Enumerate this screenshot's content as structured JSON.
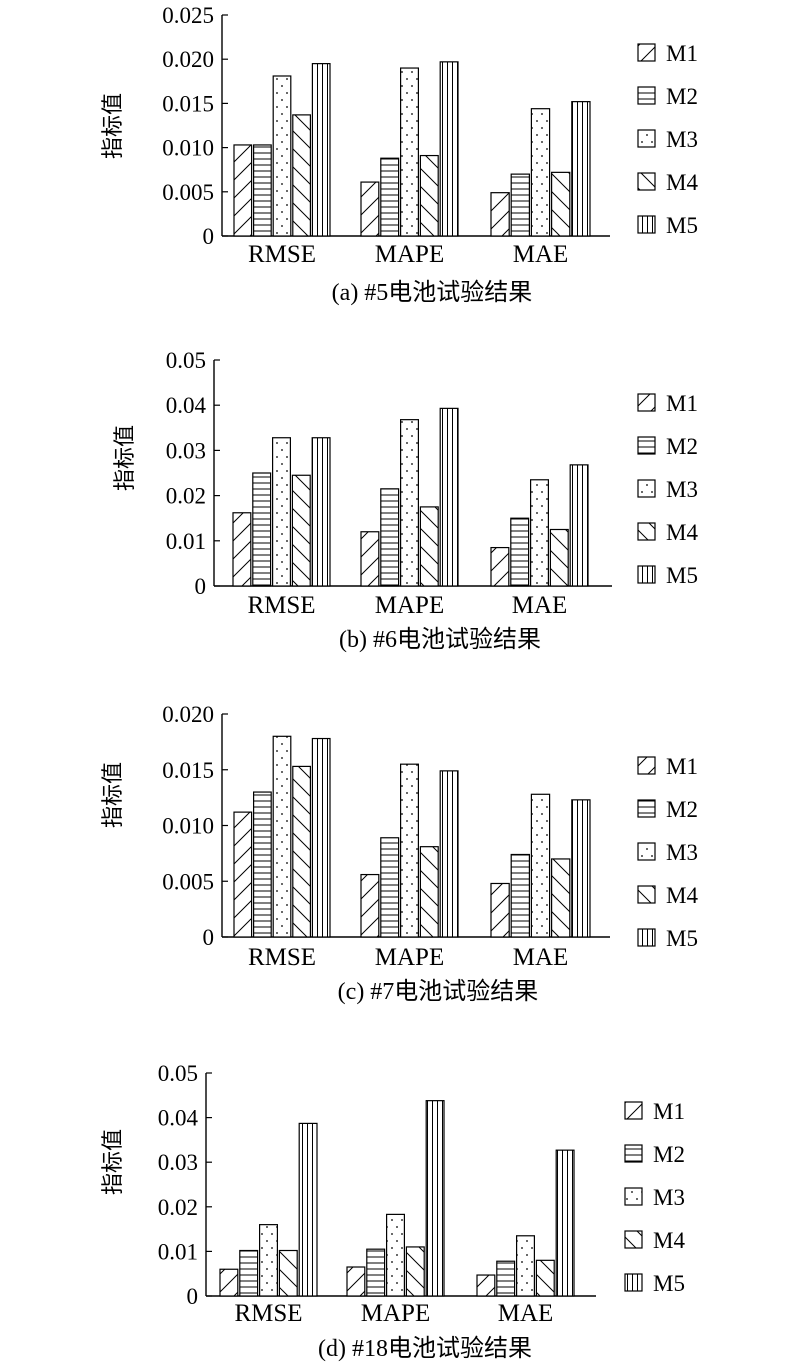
{
  "figure": {
    "patterns": {
      "M1": "diagonal-up",
      "M2": "horizontal",
      "M3": "dotted-diagonal",
      "M4": "diagonal-down",
      "M5": "vertical"
    }
  },
  "chart_data": [
    {
      "type": "bar",
      "caption": "(a) #5电池试验结果",
      "ylabel": "指标值",
      "categories": [
        "RMSE",
        "MAPE",
        "MAE"
      ],
      "ylim": [
        0,
        0.025
      ],
      "yticks": [
        "0",
        "0.005",
        "0.010",
        "0.015",
        "0.020",
        "0.025"
      ],
      "ytick_values": [
        0,
        0.005,
        0.01,
        0.015,
        0.02,
        0.025
      ],
      "legend_position": "right",
      "series": [
        {
          "name": "M1",
          "values": [
            0.0103,
            0.0061,
            0.0049
          ]
        },
        {
          "name": "M2",
          "values": [
            0.0103,
            0.0088,
            0.007
          ]
        },
        {
          "name": "M3",
          "values": [
            0.0181,
            0.019,
            0.0144
          ]
        },
        {
          "name": "M4",
          "values": [
            0.0137,
            0.0091,
            0.0072
          ]
        },
        {
          "name": "M5",
          "values": [
            0.0195,
            0.0197,
            0.0152
          ]
        }
      ]
    },
    {
      "type": "bar",
      "caption": "(b) #6电池试验结果",
      "ylabel": "指标值",
      "categories": [
        "RMSE",
        "MAPE",
        "MAE"
      ],
      "ylim": [
        0,
        0.05
      ],
      "yticks": [
        "0",
        "0.01",
        "0.02",
        "0.03",
        "0.04",
        "0.05"
      ],
      "ytick_values": [
        0,
        0.01,
        0.02,
        0.03,
        0.04,
        0.05
      ],
      "legend_position": "right",
      "series": [
        {
          "name": "M1",
          "values": [
            0.0162,
            0.012,
            0.0085
          ]
        },
        {
          "name": "M2",
          "values": [
            0.025,
            0.0215,
            0.015
          ]
        },
        {
          "name": "M3",
          "values": [
            0.0328,
            0.0368,
            0.0235
          ]
        },
        {
          "name": "M4",
          "values": [
            0.0245,
            0.0175,
            0.0125
          ]
        },
        {
          "name": "M5",
          "values": [
            0.0328,
            0.0393,
            0.0268
          ]
        }
      ]
    },
    {
      "type": "bar",
      "caption": "(c) #7电池试验结果",
      "ylabel": "指标值",
      "categories": [
        "RMSE",
        "MAPE",
        "MAE"
      ],
      "ylim": [
        0,
        0.02
      ],
      "yticks": [
        "0",
        "0.005",
        "0.010",
        "0.015",
        "0.020"
      ],
      "ytick_values": [
        0,
        0.005,
        0.01,
        0.015,
        0.02
      ],
      "legend_position": "right",
      "series": [
        {
          "name": "M1",
          "values": [
            0.0112,
            0.0056,
            0.0048
          ]
        },
        {
          "name": "M2",
          "values": [
            0.013,
            0.0089,
            0.0074
          ]
        },
        {
          "name": "M3",
          "values": [
            0.018,
            0.0155,
            0.0128
          ]
        },
        {
          "name": "M4",
          "values": [
            0.0153,
            0.0081,
            0.007
          ]
        },
        {
          "name": "M5",
          "values": [
            0.0178,
            0.0149,
            0.0123
          ]
        }
      ]
    },
    {
      "type": "bar",
      "caption": "(d) #18电池试验结果",
      "ylabel": "指标值",
      "categories": [
        "RMSE",
        "MAPE",
        "MAE"
      ],
      "ylim": [
        0,
        0.05
      ],
      "yticks": [
        "0",
        "0.01",
        "0.02",
        "0.03",
        "0.04",
        "0.05"
      ],
      "ytick_values": [
        0,
        0.01,
        0.02,
        0.03,
        0.04,
        0.05
      ],
      "legend_position": "right",
      "series": [
        {
          "name": "M1",
          "values": [
            0.006,
            0.0065,
            0.0047
          ]
        },
        {
          "name": "M2",
          "values": [
            0.0102,
            0.0105,
            0.0078
          ]
        },
        {
          "name": "M3",
          "values": [
            0.016,
            0.0183,
            0.0135
          ]
        },
        {
          "name": "M4",
          "values": [
            0.0102,
            0.011,
            0.008
          ]
        },
        {
          "name": "M5",
          "values": [
            0.0387,
            0.0438,
            0.0327
          ]
        }
      ]
    }
  ]
}
